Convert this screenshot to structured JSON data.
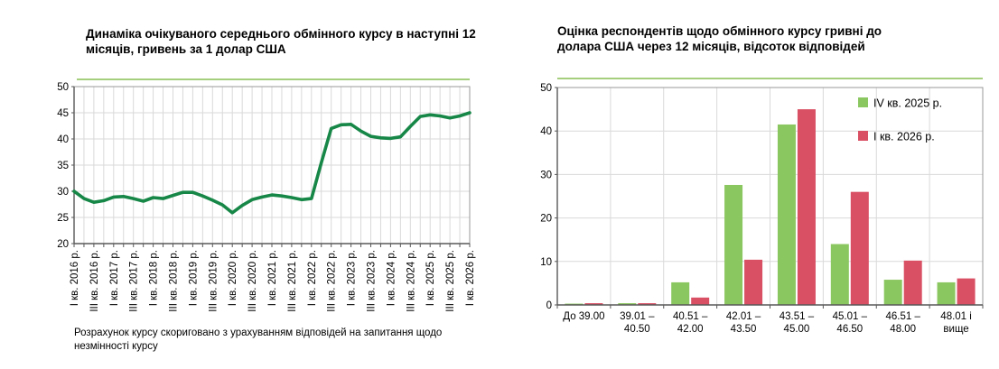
{
  "colors": {
    "accent_underline": "#A5CE7D",
    "line_green": "#178747",
    "bar_green": "#8BC760",
    "bar_red": "#D94F63",
    "gridline": "#D9D9D9",
    "plot_border": "#999999",
    "axis": "#595959",
    "text": "#000000"
  },
  "chart_data": [
    {
      "type": "line",
      "title": "Динаміка очікуваного середнього обмінного курсу в наступні 12 місяців, гривень за 1 долар США",
      "footnote": "Розрахунок курсу скориговано з урахуванням відповідей на запитання щодо незмінності курсу",
      "ylim": [
        20,
        50
      ],
      "ytick_step": 5,
      "grid": true,
      "legend_position": "none",
      "x_labels": [
        "I кв. 2016 р.",
        "III кв. 2016 р.",
        "I кв. 2017 р.",
        "III кв. 2017 р.",
        "I кв. 2018 р.",
        "III кв. 2018 р.",
        "I кв. 2019 р.",
        "III кв. 2019 р.",
        "I кв. 2020 р.",
        "III кв. 2020 р.",
        "I кв. 2021 р.",
        "III кв. 2021 р.",
        "I кв. 2022 р.",
        "III кв. 2022 р.",
        "I кв. 2023 р.",
        "III кв. 2023 р.",
        "I кв. 2024 р.",
        "III кв. 2024 р.",
        "I кв. 2025 р.",
        "III кв. 2025 р.",
        "I кв. 2026 р."
      ],
      "points_per_label": 2,
      "values": [
        30.0,
        28.6,
        27.9,
        28.2,
        28.9,
        29.0,
        28.6,
        28.1,
        28.8,
        28.6,
        29.2,
        29.8,
        29.8,
        29.1,
        28.3,
        27.4,
        25.9,
        27.3,
        28.4,
        28.9,
        29.3,
        29.1,
        28.8,
        28.4,
        28.6,
        35.5,
        42.0,
        42.7,
        42.8,
        41.5,
        40.5,
        40.2,
        40.1,
        40.4,
        42.4,
        44.3,
        44.6,
        44.4,
        44.0,
        44.4,
        45.0
      ]
    },
    {
      "type": "bar",
      "title": "Оцінка респондентів щодо обмінного курсу гривні до долара США через 12 місяців, відсоток відповідей",
      "ylim": [
        0,
        50
      ],
      "ytick_step": 10,
      "grid": true,
      "legend_position": "top-right",
      "categories": [
        [
          "До 39.00"
        ],
        [
          "39.01 –",
          "40.50"
        ],
        [
          "40.51 –",
          "42.00"
        ],
        [
          "42.01 –",
          "43.50"
        ],
        [
          "43.51 –",
          "45.00"
        ],
        [
          "45.01 –",
          "46.50"
        ],
        [
          "46.51 –",
          "48.00"
        ],
        [
          "48.01 і",
          "вище"
        ]
      ],
      "series": [
        {
          "name": "IV кв. 2025 р.",
          "color": "#8BC760",
          "values": [
            0.3,
            0.4,
            5.2,
            27.6,
            41.5,
            14.0,
            5.8,
            5.2
          ]
        },
        {
          "name": "I кв. 2026 р.",
          "color": "#D94F63",
          "values": [
            0.4,
            0.4,
            1.7,
            10.4,
            45.0,
            26.0,
            10.2,
            6.1
          ]
        }
      ]
    }
  ]
}
